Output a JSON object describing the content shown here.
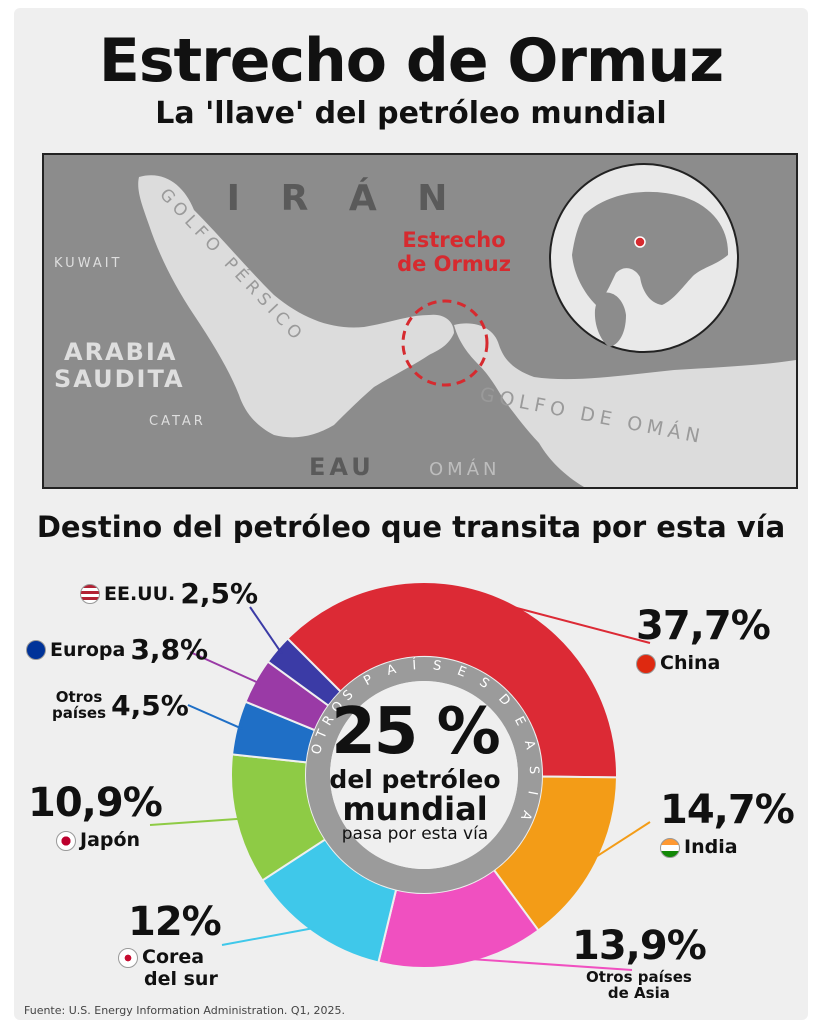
{
  "header": {
    "title": "Estrecho de Ormuz",
    "subtitle": "La 'llave' del petróleo mundial"
  },
  "map": {
    "labels": {
      "iran": "I R Á N",
      "strait_line1": "Estrecho",
      "strait_line2": "de Ormuz",
      "golfo_persico": "GOLFO PÉRSICO",
      "kuwait": "KUWAIT",
      "arabia_line1": "ARABIA",
      "arabia_line2": "SAUDITA",
      "catar": "CATAR",
      "eau": "EAU",
      "oman": "OMÁN",
      "golfo_oman": "GOLFO DE OMÁN"
    },
    "colors": {
      "land": "#8c8c8c",
      "sea": "#dcdcdc",
      "marker": "#d62a2f"
    }
  },
  "section_title": "Destino del petróleo que transita por esta vía",
  "center": {
    "pct": "25 %",
    "line1": "del petróleo",
    "line2": "mundial",
    "line3": "pasa por esta vía"
  },
  "ring_labels": {
    "otros": "OTROS",
    "paises": "P A Í S E S",
    "de": "D E",
    "asia": "A S I A"
  },
  "source": "Fuente: U.S. Energy Information Administration. Q1, 2025.",
  "chart_data": {
    "type": "pie",
    "title": "Destino del petróleo que transita por esta vía",
    "slices": [
      {
        "label": "China",
        "value": 37.7,
        "display": "37,7%",
        "color": "#dc2a35",
        "icon": "china-flag"
      },
      {
        "label": "India",
        "value": 14.7,
        "display": "14,7%",
        "color": "#f39c17",
        "icon": "india-flag"
      },
      {
        "label": "Otros países de Asia",
        "value": 13.9,
        "display": "13,9%",
        "color": "#f050c0",
        "icon": ""
      },
      {
        "label": "Corea del sur",
        "value": 12,
        "display": "12%",
        "color": "#3fc8ea",
        "icon": "korea-flag"
      },
      {
        "label": "Japón",
        "value": 10.9,
        "display": "10,9%",
        "color": "#8ecb45",
        "icon": "japan-flag"
      },
      {
        "label": "Otros países",
        "value": 4.5,
        "display": "4,5%",
        "color": "#1f6fc6",
        "icon": ""
      },
      {
        "label": "Europa",
        "value": 3.8,
        "display": "3,8%",
        "color": "#9a3aa6",
        "icon": "eu-flag"
      },
      {
        "label": "EE.UU.",
        "value": 2.5,
        "display": "2,5%",
        "color": "#3b3ba6",
        "icon": "usa-flag"
      }
    ],
    "legend_text": {
      "china": "China",
      "india": "India",
      "otros_asia_1": "Otros países",
      "otros_asia_2": "de Asia",
      "corea_1": "Corea",
      "corea_2": "del sur",
      "japon": "Japón",
      "otros_paises_1": "Otros",
      "otros_paises_2": "países",
      "europa": "Europa",
      "eeuu": "EE.UU."
    }
  }
}
